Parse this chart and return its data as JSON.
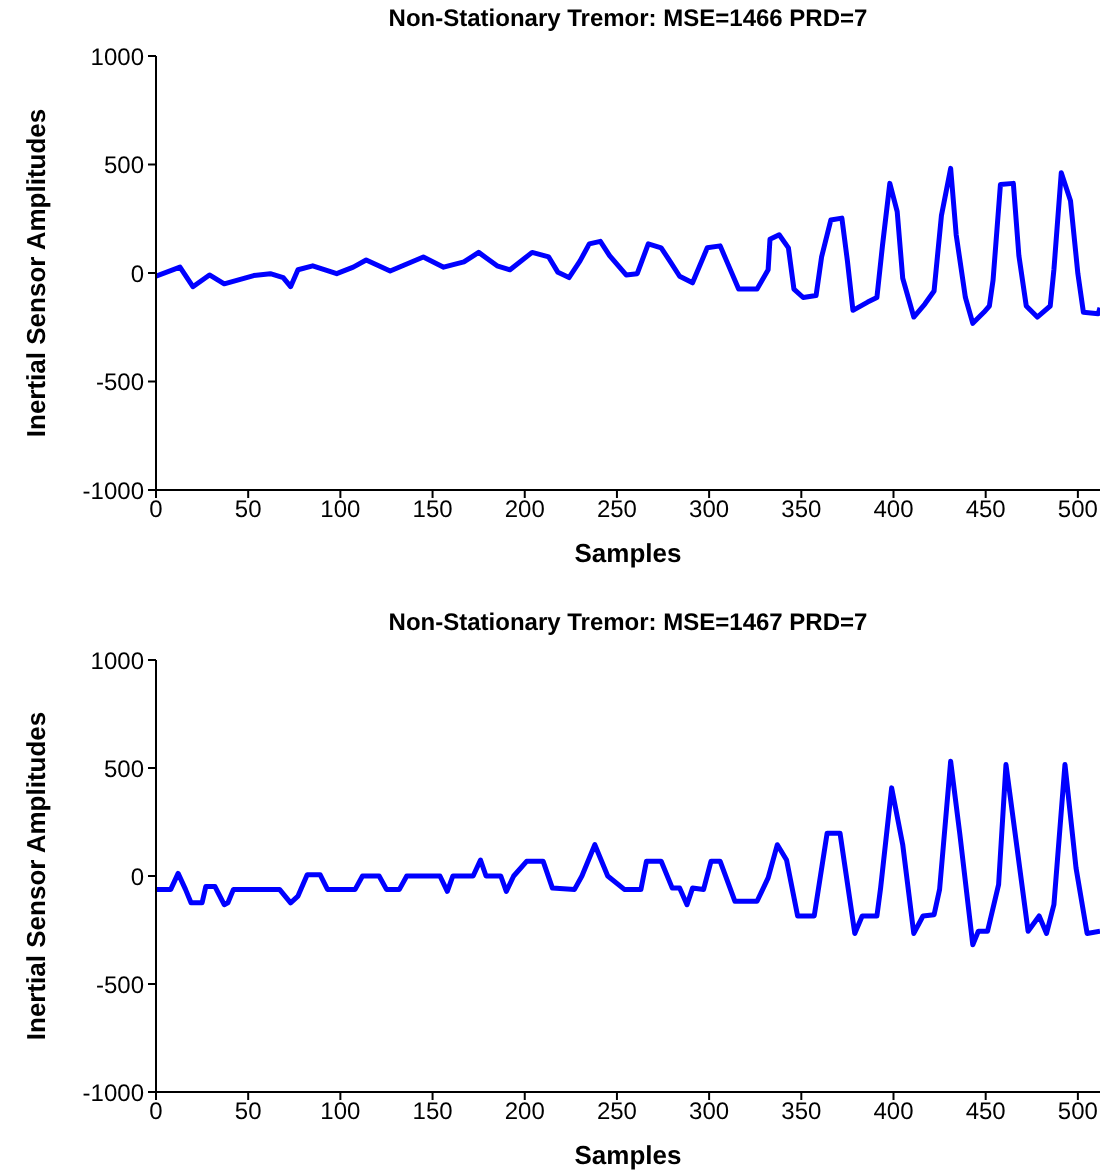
{
  "chart_data": [
    {
      "type": "line",
      "title": "Non-Stationary Tremor: MSE=1466 PRD=7",
      "xlabel": "Samples",
      "ylabel": "Inertial Sensor Amplitudes",
      "color": "#0000ff",
      "xlim": [
        0,
        512
      ],
      "ylim": [
        -1000,
        1000
      ],
      "xticks": [
        0,
        50,
        100,
        150,
        200,
        250,
        300,
        350,
        400,
        450,
        500
      ],
      "yticks": [
        -1000,
        -500,
        0,
        500,
        1000
      ],
      "x": [
        0,
        13,
        20,
        29,
        37,
        53,
        62,
        69,
        73,
        77,
        85,
        98,
        107,
        114,
        127,
        145,
        156,
        167,
        175,
        185,
        192,
        204,
        213,
        218,
        224,
        230,
        235,
        241,
        246,
        255,
        261,
        267,
        274,
        279,
        284,
        291,
        299,
        306,
        309,
        316,
        326,
        332,
        333,
        338,
        343,
        346,
        351,
        358,
        361,
        366,
        372,
        375,
        378,
        386,
        391,
        394,
        398,
        402,
        405,
        411,
        417,
        422,
        426,
        431,
        434,
        439,
        443,
        449,
        452,
        454,
        458,
        465,
        468,
        472,
        478,
        485,
        487,
        491,
        496,
        500,
        503,
        511,
        512
      ],
      "values": [
        -15,
        27,
        -63,
        -9,
        -50,
        -12,
        -3,
        -21,
        -63,
        15,
        33,
        -3,
        27,
        60,
        9,
        74,
        27,
        51,
        95,
        33,
        15,
        95,
        74,
        3,
        -21,
        56,
        134,
        146,
        80,
        -9,
        -3,
        134,
        116,
        51,
        -15,
        -45,
        116,
        125,
        65,
        -74,
        -74,
        15,
        155,
        176,
        116,
        -74,
        -113,
        -104,
        74,
        244,
        253,
        56,
        -172,
        -134,
        -113,
        125,
        413,
        283,
        -24,
        -203,
        -143,
        -83,
        265,
        482,
        176,
        -113,
        -232,
        -181,
        -152,
        -33,
        408,
        413,
        80,
        -152,
        -203,
        -152,
        15,
        462,
        333,
        -3,
        -181,
        -188,
        -160
      ]
    },
    {
      "type": "line",
      "title": "Non-Stationary Tremor: MSE=1467 PRD=7",
      "xlabel": "Samples",
      "ylabel": "Inertial Sensor Amplitudes",
      "color": "#0000ff",
      "xlim": [
        0,
        512
      ],
      "ylim": [
        -1000,
        1000
      ],
      "xticks": [
        0,
        50,
        100,
        150,
        200,
        250,
        300,
        350,
        400,
        450,
        500
      ],
      "yticks": [
        -1000,
        -500,
        0,
        500,
        1000
      ],
      "x": [
        0,
        8,
        12,
        16,
        19,
        25,
        27,
        32,
        37,
        39,
        42,
        67,
        73,
        77,
        82,
        89,
        93,
        108,
        112,
        121,
        125,
        132,
        136,
        154,
        158,
        161,
        172,
        176,
        179,
        187,
        190,
        194,
        201,
        210,
        215,
        227,
        231,
        238,
        245,
        254,
        263,
        266,
        274,
        280,
        284,
        288,
        291,
        297,
        301,
        306,
        314,
        326,
        332,
        337,
        342,
        348,
        357,
        364,
        371,
        379,
        383,
        391,
        393,
        399,
        405,
        411,
        416,
        422,
        425,
        431,
        436,
        443,
        446,
        451,
        457,
        461,
        467,
        473,
        479,
        483,
        487,
        493,
        499,
        505,
        512
      ],
      "values": [
        -62,
        -62,
        12,
        -62,
        -124,
        -124,
        -49,
        -49,
        -133,
        -124,
        -62,
        -62,
        -124,
        -93,
        6,
        6,
        -62,
        -62,
        0,
        0,
        -62,
        -62,
        0,
        0,
        -71,
        0,
        0,
        74,
        0,
        0,
        -71,
        0,
        68,
        68,
        -56,
        -62,
        0,
        145,
        0,
        -62,
        -62,
        68,
        68,
        -56,
        -56,
        -133,
        -56,
        -62,
        68,
        68,
        -117,
        -117,
        -9,
        145,
        74,
        -185,
        -185,
        198,
        198,
        -266,
        -185,
        -185,
        -56,
        408,
        145,
        -266,
        -185,
        -179,
        -62,
        531,
        192,
        -318,
        -256,
        -256,
        -40,
        516,
        130,
        -256,
        -185,
        -266,
        -133,
        516,
        37,
        -266,
        -256
      ]
    }
  ]
}
